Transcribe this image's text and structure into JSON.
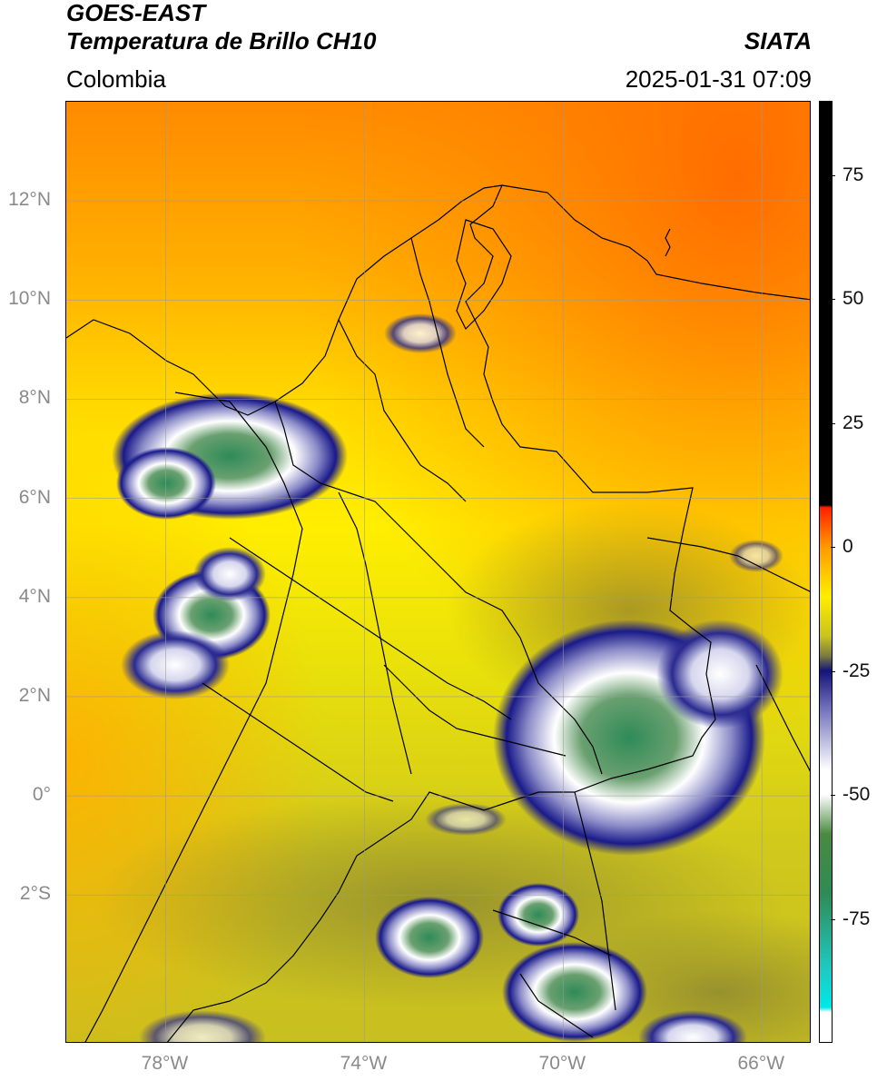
{
  "header": {
    "satellite": "GOES-EAST",
    "product": "Temperatura de Brillo CH10",
    "brand": "SIATA",
    "region": "Colombia",
    "datetime": "2025-01-31 07:09"
  },
  "axes": {
    "lat_labels": [
      {
        "text": "12°N",
        "value": 12
      },
      {
        "text": "10°N",
        "value": 10
      },
      {
        "text": "8°N",
        "value": 8
      },
      {
        "text": "6°N",
        "value": 6
      },
      {
        "text": "4°N",
        "value": 4
      },
      {
        "text": "2°N",
        "value": 2
      },
      {
        "text": "0°",
        "value": 0
      },
      {
        "text": "2°S",
        "value": -2
      }
    ],
    "lon_labels": [
      {
        "text": "78°W",
        "value": -78
      },
      {
        "text": "74°W",
        "value": -74
      },
      {
        "text": "70°W",
        "value": -70
      },
      {
        "text": "66°W",
        "value": -66
      }
    ],
    "lat_range": [
      -5,
      14
    ],
    "lon_range": [
      -80,
      -65
    ],
    "grid": true
  },
  "colorbar": {
    "ticks": [
      {
        "text": "75",
        "value": 75
      },
      {
        "text": "50",
        "value": 50
      },
      {
        "text": "25",
        "value": 25
      },
      {
        "text": "0",
        "value": 0
      },
      {
        "text": "-25",
        "value": -25
      },
      {
        "text": "-50",
        "value": -50
      },
      {
        "text": "-75",
        "value": -75
      }
    ],
    "range": [
      -100,
      90
    ]
  },
  "colors": {
    "warm": "#ff7a00",
    "mid": "#ffe400",
    "olive": "#c8c41e",
    "deep_convection": "#1a1a8a",
    "coldest": "#2e8b57"
  }
}
